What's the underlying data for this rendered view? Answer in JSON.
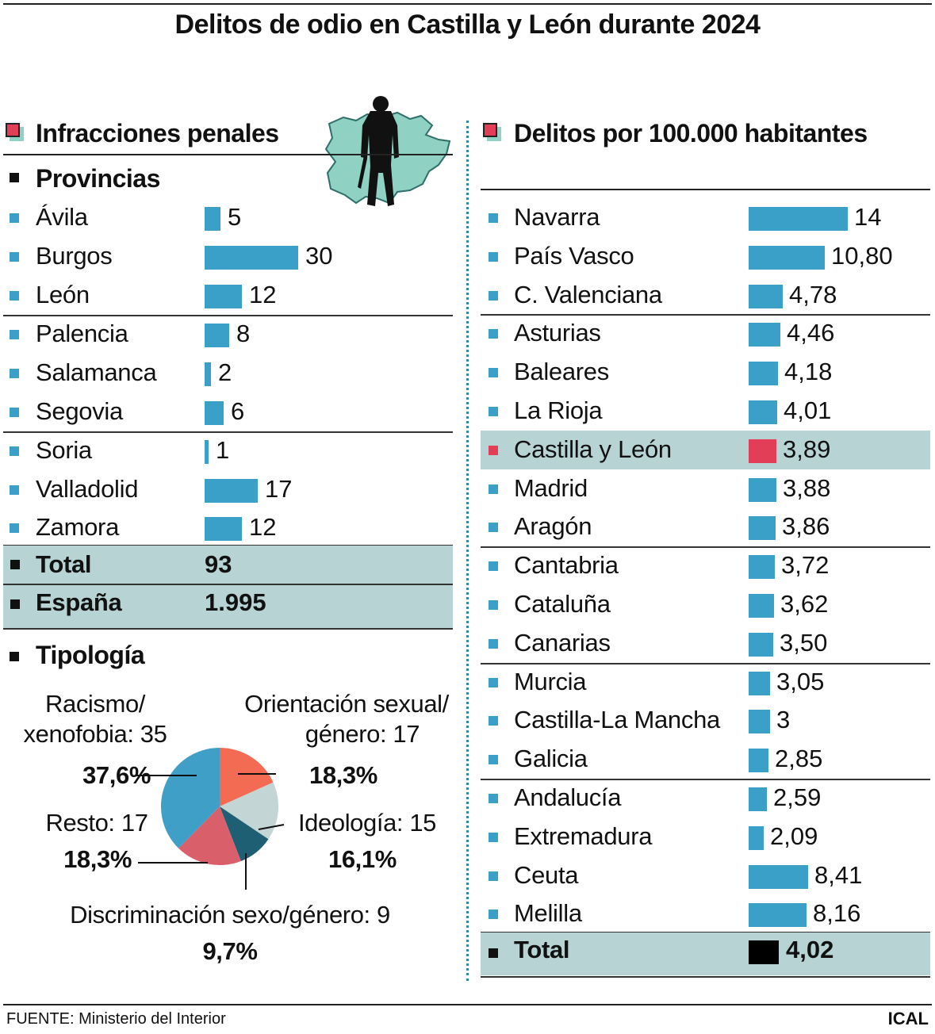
{
  "title": "Delitos de odio en Castilla y León durante 2024",
  "colors": {
    "bar": "#3aa0c8",
    "highlight_bar": "#e23e57",
    "total_bar": "#000000",
    "row_highlight": "#b8d3d3",
    "map": "#8fd1c3",
    "pie": {
      "racismo": "#3f9fc6",
      "orientacion": "#f26b52",
      "ideologia": "#c3d5d5",
      "discriminacion": "#1e5f73",
      "resto": "#d9606a"
    }
  },
  "left": {
    "heading": "Infracciones penales",
    "provinces_heading": "Provincias",
    "provinces": [
      {
        "name": "Ávila",
        "value": "5"
      },
      {
        "name": "Burgos",
        "value": "30"
      },
      {
        "name": "León",
        "value": "12"
      },
      {
        "name": "Palencia",
        "value": "8"
      },
      {
        "name": "Salamanca",
        "value": "2"
      },
      {
        "name": "Segovia",
        "value": "6"
      },
      {
        "name": "Soria",
        "value": "1"
      },
      {
        "name": "Valladolid",
        "value": "17"
      },
      {
        "name": "Zamora",
        "value": "12"
      }
    ],
    "total_label": "Total",
    "total_value": "93",
    "spain_label": "España",
    "spain_value": "1.995",
    "typology_heading": "Tipología",
    "icons": [
      "castilla-y-leon-map-icon",
      "silhouette-icon"
    ]
  },
  "pie": {
    "slices": [
      {
        "key": "racismo",
        "line1": "Racismo/",
        "line2": "xenofobia: 35",
        "pct": "37,6%",
        "value": 35
      },
      {
        "key": "orientacion",
        "line1": "Orientación sexual/",
        "line2": "género: 17",
        "pct": "18,3%",
        "value": 17
      },
      {
        "key": "ideologia",
        "line1": "Ideología: 15",
        "pct": "16,1%",
        "value": 15
      },
      {
        "key": "discriminacion",
        "line1": "Discriminación sexo/género: 9",
        "pct": "9,7%",
        "value": 9
      },
      {
        "key": "resto",
        "line1": "Resto: 17",
        "pct": "18,3%",
        "value": 17
      }
    ]
  },
  "right": {
    "heading": "Delitos por 100.000 habitantes",
    "regions": [
      {
        "name": "Navarra",
        "value": "14"
      },
      {
        "name": "País Vasco",
        "value": "10,80"
      },
      {
        "name": "C. Valenciana",
        "value": "4,78"
      },
      {
        "name": "Asturias",
        "value": "4,46"
      },
      {
        "name": "Baleares",
        "value": "4,18"
      },
      {
        "name": "La Rioja",
        "value": "4,01"
      },
      {
        "name": "Castilla y León",
        "value": "3,89",
        "highlight": true
      },
      {
        "name": "Madrid",
        "value": "3,88"
      },
      {
        "name": "Aragón",
        "value": "3,86"
      },
      {
        "name": "Cantabria",
        "value": "3,72"
      },
      {
        "name": "Cataluña",
        "value": "3,62"
      },
      {
        "name": "Canarias",
        "value": "3,50"
      },
      {
        "name": "Murcia",
        "value": "3,05"
      },
      {
        "name": "Castilla-La Mancha",
        "value": "3"
      },
      {
        "name": "Galicia",
        "value": "2,85"
      },
      {
        "name": "Andalucía",
        "value": "2,59"
      },
      {
        "name": "Extremadura",
        "value": "2,09"
      },
      {
        "name": "Ceuta",
        "value": "8,41"
      },
      {
        "name": "Melilla",
        "value": "8,16"
      }
    ],
    "total_label": "Total",
    "total_value": "4,02"
  },
  "chart_data": [
    {
      "type": "bar",
      "title": "Infracciones penales",
      "categories": [
        "Ávila",
        "Burgos",
        "León",
        "Palencia",
        "Salamanca",
        "Segovia",
        "Soria",
        "Valladolid",
        "Zamora"
      ],
      "values": [
        5,
        30,
        12,
        8,
        2,
        6,
        1,
        17,
        12
      ],
      "total": 93,
      "spain": 1995
    },
    {
      "type": "pie",
      "title": "Tipología",
      "categories": [
        "Racismo/xenofobia",
        "Orientación sexual/género",
        "Ideología",
        "Discriminación sexo/género",
        "Resto"
      ],
      "values": [
        35,
        17,
        15,
        9,
        17
      ],
      "percentages": [
        37.6,
        18.3,
        16.1,
        9.7,
        18.3
      ]
    },
    {
      "type": "bar",
      "title": "Delitos por 100.000 habitantes",
      "categories": [
        "Navarra",
        "País Vasco",
        "C. Valenciana",
        "Asturias",
        "Baleares",
        "La Rioja",
        "Castilla y León",
        "Madrid",
        "Aragón",
        "Cantabria",
        "Cataluña",
        "Canarias",
        "Murcia",
        "Castilla-La Mancha",
        "Galicia",
        "Andalucía",
        "Extremadura",
        "Ceuta",
        "Melilla"
      ],
      "values": [
        14,
        10.8,
        4.78,
        4.46,
        4.18,
        4.01,
        3.89,
        3.88,
        3.86,
        3.72,
        3.62,
        3.5,
        3.05,
        3,
        2.85,
        2.59,
        2.09,
        8.41,
        8.16
      ],
      "total": 4.02
    }
  ],
  "footer": {
    "source": "FUENTE: Ministerio del Interior",
    "brand": "ICAL"
  }
}
